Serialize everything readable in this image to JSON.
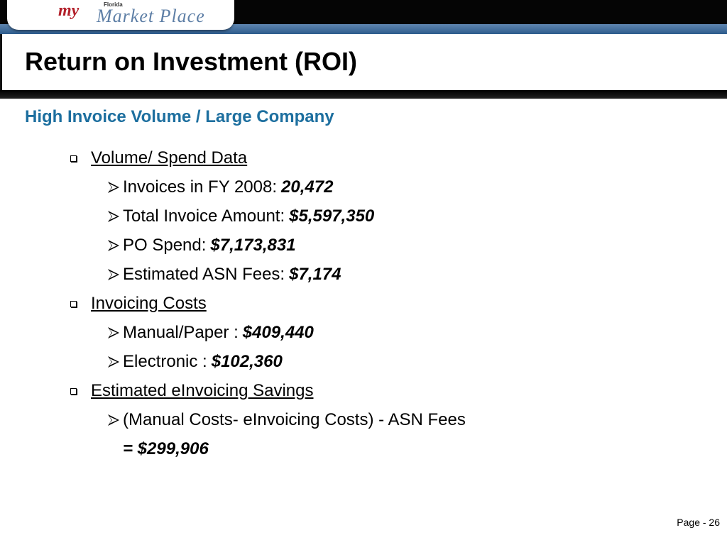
{
  "logo": {
    "my": "my",
    "state": "Florida",
    "name": "Market Place"
  },
  "title": "Return on Investment (ROI)",
  "subtitle": "High Invoice Volume / Large Company",
  "sections": [
    {
      "heading": "Volume/ Spend Data",
      "items": [
        {
          "label": "Invoices in FY 2008:",
          "value": "20,472"
        },
        {
          "label": "Total Invoice Amount:",
          "value": "$5,597,350"
        },
        {
          "label": "PO Spend:",
          "value": "$7,173,831"
        },
        {
          "label": "Estimated ASN Fees:",
          "value": "$7,174"
        }
      ]
    },
    {
      "heading": "Invoicing Costs",
      "items": [
        {
          "label": "Manual/Paper :",
          "value": "$409,440"
        },
        {
          "label": "Electronic :",
          "value": "$102,360"
        }
      ]
    },
    {
      "heading": "Estimated eInvoicing Savings",
      "items": [
        {
          "label": "(Manual Costs- eInvoicing Costs) - ASN Fees"
        }
      ],
      "result": "= $299,906"
    }
  ],
  "footer": "Page - 26"
}
